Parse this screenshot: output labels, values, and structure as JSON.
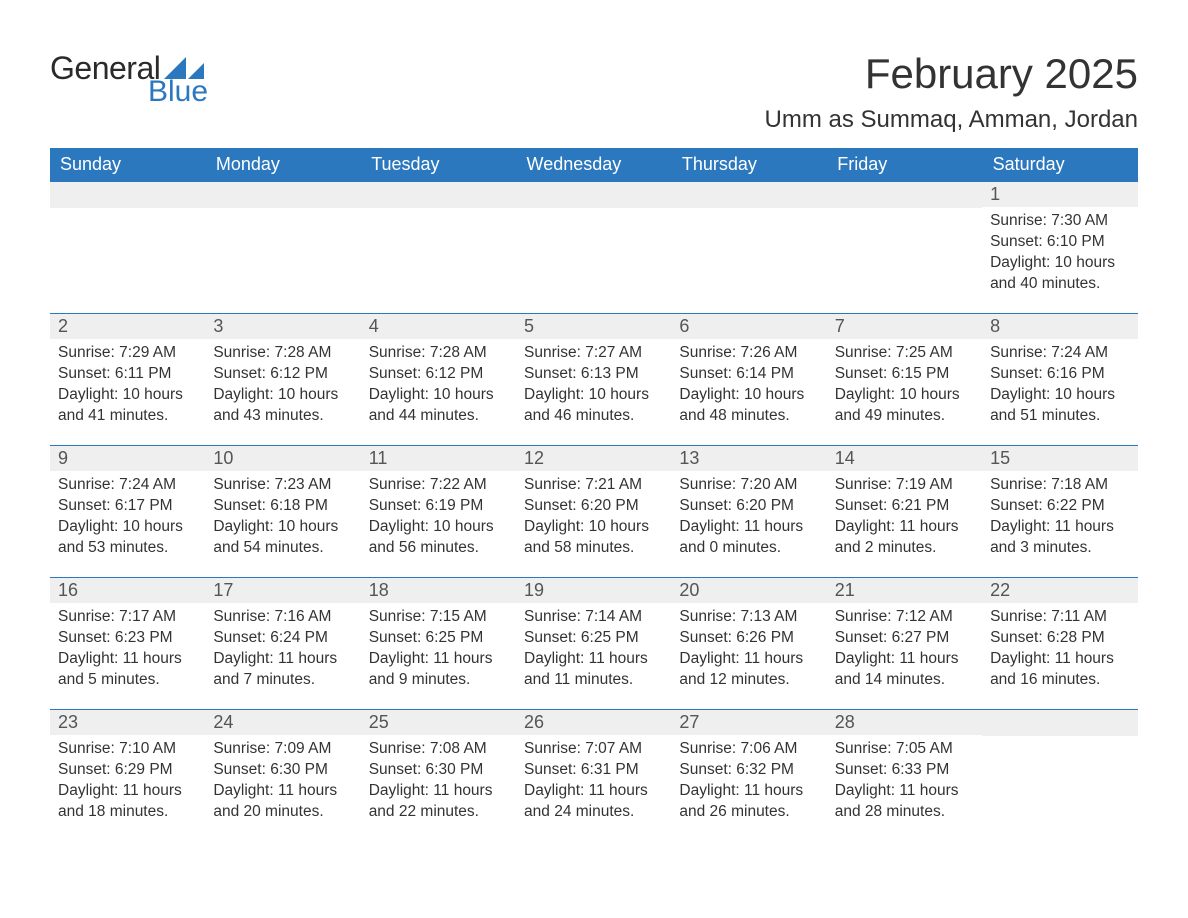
{
  "branding": {
    "general": "General",
    "blue": "Blue",
    "accent_color": "#2b78bf",
    "text_color": "#333333"
  },
  "title": {
    "month_year": "February 2025",
    "location": "Umm as Summaq, Amman, Jordan"
  },
  "calendar": {
    "header_bg": "#2b78bf",
    "header_text_color": "#ffffff",
    "daynum_bg": "#efefef",
    "border_color": "#2b78bf",
    "day_headers": [
      "Sunday",
      "Monday",
      "Tuesday",
      "Wednesday",
      "Thursday",
      "Friday",
      "Saturday"
    ],
    "weeks": [
      [
        null,
        null,
        null,
        null,
        null,
        null,
        {
          "num": "1",
          "sunrise": "Sunrise: 7:30 AM",
          "sunset": "Sunset: 6:10 PM",
          "daylight": "Daylight: 10 hours and 40 minutes."
        }
      ],
      [
        {
          "num": "2",
          "sunrise": "Sunrise: 7:29 AM",
          "sunset": "Sunset: 6:11 PM",
          "daylight": "Daylight: 10 hours and 41 minutes."
        },
        {
          "num": "3",
          "sunrise": "Sunrise: 7:28 AM",
          "sunset": "Sunset: 6:12 PM",
          "daylight": "Daylight: 10 hours and 43 minutes."
        },
        {
          "num": "4",
          "sunrise": "Sunrise: 7:28 AM",
          "sunset": "Sunset: 6:12 PM",
          "daylight": "Daylight: 10 hours and 44 minutes."
        },
        {
          "num": "5",
          "sunrise": "Sunrise: 7:27 AM",
          "sunset": "Sunset: 6:13 PM",
          "daylight": "Daylight: 10 hours and 46 minutes."
        },
        {
          "num": "6",
          "sunrise": "Sunrise: 7:26 AM",
          "sunset": "Sunset: 6:14 PM",
          "daylight": "Daylight: 10 hours and 48 minutes."
        },
        {
          "num": "7",
          "sunrise": "Sunrise: 7:25 AM",
          "sunset": "Sunset: 6:15 PM",
          "daylight": "Daylight: 10 hours and 49 minutes."
        },
        {
          "num": "8",
          "sunrise": "Sunrise: 7:24 AM",
          "sunset": "Sunset: 6:16 PM",
          "daylight": "Daylight: 10 hours and 51 minutes."
        }
      ],
      [
        {
          "num": "9",
          "sunrise": "Sunrise: 7:24 AM",
          "sunset": "Sunset: 6:17 PM",
          "daylight": "Daylight: 10 hours and 53 minutes."
        },
        {
          "num": "10",
          "sunrise": "Sunrise: 7:23 AM",
          "sunset": "Sunset: 6:18 PM",
          "daylight": "Daylight: 10 hours and 54 minutes."
        },
        {
          "num": "11",
          "sunrise": "Sunrise: 7:22 AM",
          "sunset": "Sunset: 6:19 PM",
          "daylight": "Daylight: 10 hours and 56 minutes."
        },
        {
          "num": "12",
          "sunrise": "Sunrise: 7:21 AM",
          "sunset": "Sunset: 6:20 PM",
          "daylight": "Daylight: 10 hours and 58 minutes."
        },
        {
          "num": "13",
          "sunrise": "Sunrise: 7:20 AM",
          "sunset": "Sunset: 6:20 PM",
          "daylight": "Daylight: 11 hours and 0 minutes."
        },
        {
          "num": "14",
          "sunrise": "Sunrise: 7:19 AM",
          "sunset": "Sunset: 6:21 PM",
          "daylight": "Daylight: 11 hours and 2 minutes."
        },
        {
          "num": "15",
          "sunrise": "Sunrise: 7:18 AM",
          "sunset": "Sunset: 6:22 PM",
          "daylight": "Daylight: 11 hours and 3 minutes."
        }
      ],
      [
        {
          "num": "16",
          "sunrise": "Sunrise: 7:17 AM",
          "sunset": "Sunset: 6:23 PM",
          "daylight": "Daylight: 11 hours and 5 minutes."
        },
        {
          "num": "17",
          "sunrise": "Sunrise: 7:16 AM",
          "sunset": "Sunset: 6:24 PM",
          "daylight": "Daylight: 11 hours and 7 minutes."
        },
        {
          "num": "18",
          "sunrise": "Sunrise: 7:15 AM",
          "sunset": "Sunset: 6:25 PM",
          "daylight": "Daylight: 11 hours and 9 minutes."
        },
        {
          "num": "19",
          "sunrise": "Sunrise: 7:14 AM",
          "sunset": "Sunset: 6:25 PM",
          "daylight": "Daylight: 11 hours and 11 minutes."
        },
        {
          "num": "20",
          "sunrise": "Sunrise: 7:13 AM",
          "sunset": "Sunset: 6:26 PM",
          "daylight": "Daylight: 11 hours and 12 minutes."
        },
        {
          "num": "21",
          "sunrise": "Sunrise: 7:12 AM",
          "sunset": "Sunset: 6:27 PM",
          "daylight": "Daylight: 11 hours and 14 minutes."
        },
        {
          "num": "22",
          "sunrise": "Sunrise: 7:11 AM",
          "sunset": "Sunset: 6:28 PM",
          "daylight": "Daylight: 11 hours and 16 minutes."
        }
      ],
      [
        {
          "num": "23",
          "sunrise": "Sunrise: 7:10 AM",
          "sunset": "Sunset: 6:29 PM",
          "daylight": "Daylight: 11 hours and 18 minutes."
        },
        {
          "num": "24",
          "sunrise": "Sunrise: 7:09 AM",
          "sunset": "Sunset: 6:30 PM",
          "daylight": "Daylight: 11 hours and 20 minutes."
        },
        {
          "num": "25",
          "sunrise": "Sunrise: 7:08 AM",
          "sunset": "Sunset: 6:30 PM",
          "daylight": "Daylight: 11 hours and 22 minutes."
        },
        {
          "num": "26",
          "sunrise": "Sunrise: 7:07 AM",
          "sunset": "Sunset: 6:31 PM",
          "daylight": "Daylight: 11 hours and 24 minutes."
        },
        {
          "num": "27",
          "sunrise": "Sunrise: 7:06 AM",
          "sunset": "Sunset: 6:32 PM",
          "daylight": "Daylight: 11 hours and 26 minutes."
        },
        {
          "num": "28",
          "sunrise": "Sunrise: 7:05 AM",
          "sunset": "Sunset: 6:33 PM",
          "daylight": "Daylight: 11 hours and 28 minutes."
        },
        null
      ]
    ]
  }
}
